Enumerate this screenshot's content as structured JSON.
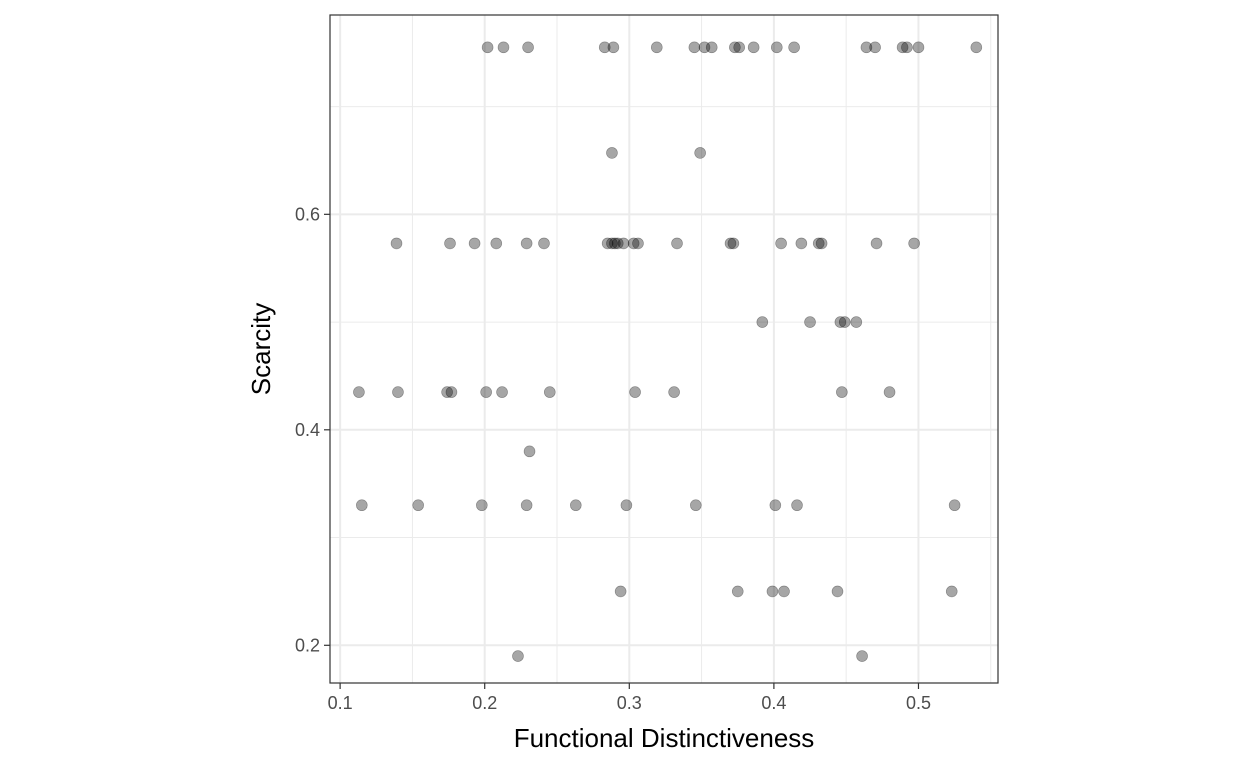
{
  "chart_data": {
    "type": "scatter",
    "xlabel": "Functional Distinctiveness",
    "ylabel": "Scarcity",
    "xlim": [
      0.093,
      0.555
    ],
    "ylim": [
      0.165,
      0.785
    ],
    "x_ticks": [
      0.1,
      0.2,
      0.3,
      0.4,
      0.5
    ],
    "x_tick_labels": [
      "0.1",
      "0.2",
      "0.3",
      "0.4",
      "0.5"
    ],
    "y_ticks": [
      0.2,
      0.4,
      0.6
    ],
    "y_tick_labels": [
      "0.2",
      "0.4",
      "0.6"
    ],
    "x_minor_grid": [
      0.15,
      0.25,
      0.35,
      0.45,
      0.55
    ],
    "y_minor_grid": [
      0.3,
      0.5,
      0.7
    ],
    "grid": true,
    "legend": "none",
    "point_color": "#000000",
    "point_opacity": 0.35,
    "points": [
      {
        "x": 0.202,
        "y": 0.755
      },
      {
        "x": 0.213,
        "y": 0.755
      },
      {
        "x": 0.23,
        "y": 0.755
      },
      {
        "x": 0.283,
        "y": 0.755
      },
      {
        "x": 0.289,
        "y": 0.755
      },
      {
        "x": 0.319,
        "y": 0.755
      },
      {
        "x": 0.345,
        "y": 0.755
      },
      {
        "x": 0.352,
        "y": 0.755
      },
      {
        "x": 0.357,
        "y": 0.755
      },
      {
        "x": 0.373,
        "y": 0.755
      },
      {
        "x": 0.376,
        "y": 0.755
      },
      {
        "x": 0.386,
        "y": 0.755
      },
      {
        "x": 0.402,
        "y": 0.755
      },
      {
        "x": 0.414,
        "y": 0.755
      },
      {
        "x": 0.464,
        "y": 0.755
      },
      {
        "x": 0.47,
        "y": 0.755
      },
      {
        "x": 0.489,
        "y": 0.755
      },
      {
        "x": 0.492,
        "y": 0.755
      },
      {
        "x": 0.5,
        "y": 0.755
      },
      {
        "x": 0.54,
        "y": 0.755
      },
      {
        "x": 0.288,
        "y": 0.657
      },
      {
        "x": 0.349,
        "y": 0.657
      },
      {
        "x": 0.139,
        "y": 0.573
      },
      {
        "x": 0.176,
        "y": 0.573
      },
      {
        "x": 0.193,
        "y": 0.573
      },
      {
        "x": 0.208,
        "y": 0.573
      },
      {
        "x": 0.229,
        "y": 0.573
      },
      {
        "x": 0.241,
        "y": 0.573
      },
      {
        "x": 0.285,
        "y": 0.573
      },
      {
        "x": 0.288,
        "y": 0.573
      },
      {
        "x": 0.29,
        "y": 0.573
      },
      {
        "x": 0.292,
        "y": 0.573
      },
      {
        "x": 0.296,
        "y": 0.573
      },
      {
        "x": 0.303,
        "y": 0.573
      },
      {
        "x": 0.306,
        "y": 0.573
      },
      {
        "x": 0.333,
        "y": 0.573
      },
      {
        "x": 0.37,
        "y": 0.573
      },
      {
        "x": 0.372,
        "y": 0.573
      },
      {
        "x": 0.405,
        "y": 0.573
      },
      {
        "x": 0.419,
        "y": 0.573
      },
      {
        "x": 0.431,
        "y": 0.573
      },
      {
        "x": 0.433,
        "y": 0.573
      },
      {
        "x": 0.471,
        "y": 0.573
      },
      {
        "x": 0.497,
        "y": 0.573
      },
      {
        "x": 0.392,
        "y": 0.5
      },
      {
        "x": 0.425,
        "y": 0.5
      },
      {
        "x": 0.446,
        "y": 0.5
      },
      {
        "x": 0.449,
        "y": 0.5
      },
      {
        "x": 0.457,
        "y": 0.5
      },
      {
        "x": 0.113,
        "y": 0.435
      },
      {
        "x": 0.14,
        "y": 0.435
      },
      {
        "x": 0.174,
        "y": 0.435
      },
      {
        "x": 0.177,
        "y": 0.435
      },
      {
        "x": 0.201,
        "y": 0.435
      },
      {
        "x": 0.212,
        "y": 0.435
      },
      {
        "x": 0.245,
        "y": 0.435
      },
      {
        "x": 0.304,
        "y": 0.435
      },
      {
        "x": 0.331,
        "y": 0.435
      },
      {
        "x": 0.447,
        "y": 0.435
      },
      {
        "x": 0.48,
        "y": 0.435
      },
      {
        "x": 0.231,
        "y": 0.38
      },
      {
        "x": 0.115,
        "y": 0.33
      },
      {
        "x": 0.154,
        "y": 0.33
      },
      {
        "x": 0.198,
        "y": 0.33
      },
      {
        "x": 0.229,
        "y": 0.33
      },
      {
        "x": 0.263,
        "y": 0.33
      },
      {
        "x": 0.298,
        "y": 0.33
      },
      {
        "x": 0.346,
        "y": 0.33
      },
      {
        "x": 0.401,
        "y": 0.33
      },
      {
        "x": 0.416,
        "y": 0.33
      },
      {
        "x": 0.525,
        "y": 0.33
      },
      {
        "x": 0.294,
        "y": 0.25
      },
      {
        "x": 0.375,
        "y": 0.25
      },
      {
        "x": 0.399,
        "y": 0.25
      },
      {
        "x": 0.407,
        "y": 0.25
      },
      {
        "x": 0.444,
        "y": 0.25
      },
      {
        "x": 0.523,
        "y": 0.25
      },
      {
        "x": 0.223,
        "y": 0.19
      },
      {
        "x": 0.461,
        "y": 0.19
      }
    ]
  }
}
